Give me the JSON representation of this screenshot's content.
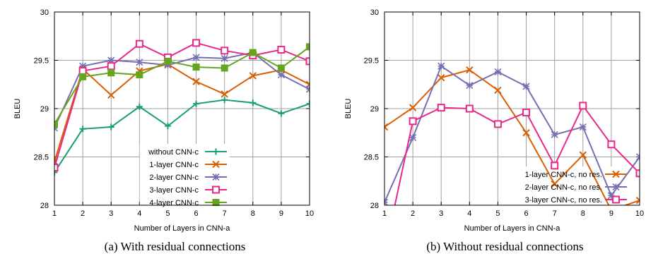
{
  "chart_data": [
    {
      "type": "line",
      "caption": "(a) With residual connections",
      "xlabel": "Number of Layers in CNN-a",
      "ylabel": "BLEU",
      "x": [
        1,
        2,
        3,
        4,
        5,
        6,
        7,
        8,
        9,
        10
      ],
      "xlim": [
        1,
        10
      ],
      "ylim": [
        28,
        30
      ],
      "yticks": [
        "28",
        "28.5",
        "29",
        "29.5",
        "30"
      ],
      "grid": true,
      "legend_position": "lower-center",
      "series": [
        {
          "name": "without CNN-c",
          "color": "#1a9e77",
          "marker": "plus",
          "values": [
            28.34,
            28.79,
            28.81,
            29.02,
            28.82,
            29.05,
            29.09,
            29.06,
            28.95,
            29.05
          ]
        },
        {
          "name": "1-layer CNN-c",
          "color": "#d95f02",
          "marker": "cross",
          "values": [
            28.45,
            29.41,
            29.14,
            29.39,
            29.46,
            29.28,
            29.15,
            29.34,
            29.4,
            29.25
          ]
        },
        {
          "name": "2-layer CNN-c",
          "color": "#7570b3",
          "marker": "star",
          "values": [
            28.8,
            29.44,
            29.5,
            29.48,
            29.45,
            29.53,
            29.52,
            29.58,
            29.35,
            29.2
          ]
        },
        {
          "name": "3-layer CNN-c",
          "color": "#e7298a",
          "marker": "square-open",
          "values": [
            28.39,
            29.39,
            29.44,
            29.67,
            29.53,
            29.68,
            29.6,
            29.55,
            29.61,
            29.49
          ]
        },
        {
          "name": "4-layer CNN-c",
          "color": "#66a61e",
          "marker": "square-filled",
          "values": [
            28.84,
            29.33,
            29.37,
            29.35,
            29.49,
            29.43,
            29.42,
            29.58,
            29.42,
            29.64
          ]
        }
      ]
    },
    {
      "type": "line",
      "caption": "(b) Without residual connections",
      "xlabel": "Number of Layers in CNN-a",
      "ylabel": "BLEU",
      "x": [
        1,
        2,
        3,
        4,
        5,
        6,
        7,
        8,
        9,
        10
      ],
      "xlim": [
        1,
        10
      ],
      "ylim": [
        28,
        30
      ],
      "yticks": [
        "28",
        "28.5",
        "29",
        "29.5",
        "30"
      ],
      "grid": true,
      "legend_position": "lower-right",
      "series": [
        {
          "name": "1-layer CNN-c, no res.",
          "color": "#d95f02",
          "marker": "cross",
          "values": [
            28.81,
            29.01,
            29.32,
            29.4,
            29.19,
            28.75,
            28.22,
            28.52,
            27.95,
            28.05
          ]
        },
        {
          "name": "2-layer CNN-c, no res.",
          "color": "#7570b3",
          "marker": "star",
          "values": [
            28.03,
            28.7,
            29.44,
            29.24,
            29.38,
            29.23,
            28.73,
            28.81,
            28.1,
            28.5
          ]
        },
        {
          "name": "3-layer CNN-c, no res.",
          "color": "#e7298a",
          "marker": "square-open",
          "values": [
            27.5,
            28.87,
            29.01,
            29.0,
            28.84,
            28.96,
            28.41,
            29.03,
            28.63,
            28.33
          ]
        }
      ]
    }
  ]
}
